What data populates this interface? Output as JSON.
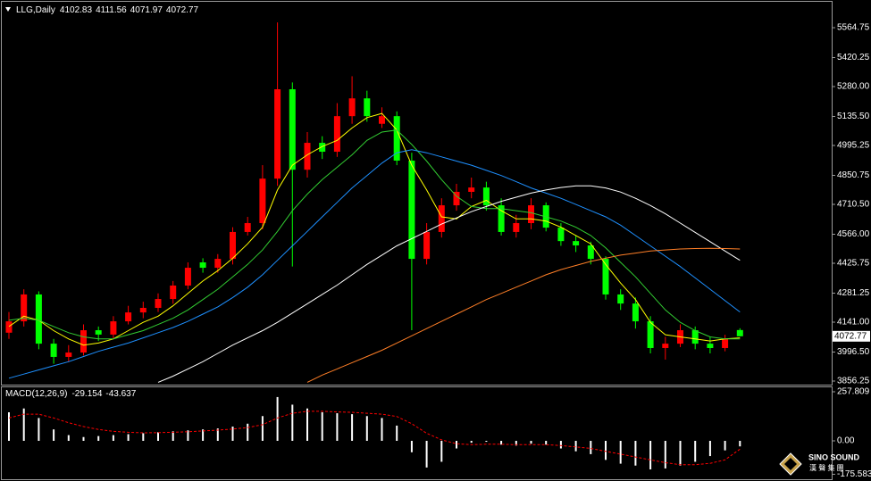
{
  "chart_data": [
    {
      "type": "candlestick",
      "title": "LLG,Daily",
      "open": [
        4090,
        4145,
        4275,
        4037,
        3973,
        3994,
        4102,
        4081,
        4145,
        4188,
        4210,
        4253,
        4318,
        4430,
        4404,
        4447,
        4577,
        4620,
        4835,
        5267,
        4878,
        5008,
        4965,
        5137,
        5223,
        5100,
        5137,
        4922,
        4447,
        4577,
        4706,
        4771,
        4792,
        4706,
        4577,
        4620,
        4706,
        4598,
        4533,
        4512,
        4447,
        4275,
        4231,
        4145,
        4016,
        4037,
        4102,
        4037,
        4016,
        4102.83
      ],
      "high": [
        4190,
        4300,
        4290,
        4060,
        4030,
        4130,
        4120,
        4170,
        4220,
        4240,
        4280,
        4340,
        4430,
        4450,
        4470,
        4600,
        4650,
        4900,
        5590,
        5300,
        5060,
        5040,
        5200,
        5330,
        5260,
        5180,
        5160,
        4960,
        4620,
        4740,
        4810,
        4840,
        4820,
        4740,
        4660,
        4740,
        4720,
        4620,
        4560,
        4530,
        4460,
        4300,
        4260,
        4170,
        4070,
        4130,
        4120,
        4070,
        4080,
        4111.56
      ],
      "low": [
        4060,
        4120,
        4010,
        3940,
        3950,
        3980,
        4050,
        4060,
        4130,
        4160,
        4190,
        4230,
        4300,
        4380,
        4380,
        4420,
        4560,
        4590,
        4800,
        4410,
        4840,
        4930,
        4940,
        5100,
        5110,
        5080,
        4900,
        4102,
        4420,
        4550,
        4680,
        4740,
        4680,
        4560,
        4550,
        4590,
        4580,
        4510,
        4480,
        4420,
        4250,
        4200,
        4110,
        3990,
        3960,
        4020,
        4010,
        3990,
        4000,
        4071.97
      ],
      "close": [
        4145,
        4275,
        4037,
        3973,
        3994,
        4102,
        4081,
        4145,
        4188,
        4210,
        4253,
        4318,
        4404,
        4404,
        4447,
        4577,
        4620,
        4835,
        5267,
        4878,
        5008,
        4965,
        5137,
        5223,
        5137,
        5137,
        4922,
        4447,
        4577,
        4706,
        4771,
        4792,
        4706,
        4577,
        4620,
        4706,
        4598,
        4533,
        4512,
        4447,
        4275,
        4231,
        4145,
        4016,
        4037,
        4102,
        4037,
        4016,
        4059,
        4072.77
      ],
      "up_color": "#ff0000",
      "down_color": "#00ff00",
      "lines": [
        {
          "color": "#ffff00",
          "values": [
            4120,
            4170,
            4150,
            4100,
            4060,
            4030,
            4040,
            4060,
            4100,
            4140,
            4170,
            4220,
            4280,
            4340,
            4390,
            4450,
            4520,
            4600,
            4780,
            4900,
            4950,
            4990,
            5020,
            5080,
            5130,
            5150,
            5070,
            4900,
            4780,
            4650,
            4640,
            4700,
            4730,
            4680,
            4640,
            4640,
            4630,
            4600,
            4560,
            4520,
            4420,
            4330,
            4250,
            4140,
            4080,
            4070,
            4060,
            4050,
            4060,
            4065
          ]
        },
        {
          "color": "#32cd32",
          "values": [
            4150,
            4160,
            4150,
            4120,
            4090,
            4070,
            4060,
            4060,
            4080,
            4100,
            4130,
            4160,
            4200,
            4250,
            4300,
            4360,
            4420,
            4490,
            4580,
            4680,
            4760,
            4830,
            4890,
            4950,
            5020,
            5060,
            5070,
            5000,
            4920,
            4830,
            4750,
            4700,
            4690,
            4690,
            4680,
            4670,
            4650,
            4630,
            4600,
            4560,
            4500,
            4430,
            4360,
            4280,
            4200,
            4140,
            4100,
            4070,
            4060,
            4060
          ]
        },
        {
          "color": "#1e90ff",
          "values": [
            3870,
            3890,
            3910,
            3930,
            3950,
            3975,
            4000,
            4020,
            4040,
            4065,
            4090,
            4115,
            4145,
            4180,
            4215,
            4260,
            4310,
            4370,
            4440,
            4510,
            4580,
            4650,
            4720,
            4790,
            4850,
            4910,
            4960,
            4975,
            4960,
            4940,
            4920,
            4900,
            4875,
            4850,
            4820,
            4790,
            4765,
            4740,
            4710,
            4680,
            4650,
            4610,
            4560,
            4510,
            4460,
            4410,
            4355,
            4300,
            4245,
            4190
          ]
        },
        {
          "color": "#ffffff",
          "values": [
            null,
            null,
            null,
            null,
            null,
            null,
            null,
            null,
            null,
            null,
            3850,
            3880,
            3915,
            3950,
            3990,
            4030,
            4065,
            4100,
            4140,
            4185,
            4230,
            4275,
            4320,
            4370,
            4420,
            4465,
            4510,
            4545,
            4580,
            4615,
            4645,
            4675,
            4700,
            4725,
            4745,
            4765,
            4780,
            4792,
            4800,
            4800,
            4790,
            4770,
            4740,
            4705,
            4665,
            4620,
            4575,
            4530,
            4485,
            4440
          ]
        },
        {
          "color": "#ff7f27",
          "values": [
            null,
            null,
            null,
            null,
            null,
            null,
            null,
            null,
            null,
            null,
            null,
            null,
            null,
            null,
            null,
            null,
            null,
            null,
            null,
            null,
            3850,
            3885,
            3915,
            3945,
            3975,
            4005,
            4040,
            4075,
            4110,
            4145,
            4180,
            4215,
            4250,
            4280,
            4310,
            4340,
            4370,
            4395,
            4415,
            4435,
            4450,
            4465,
            4475,
            4485,
            4490,
            4495,
            4497,
            4498,
            4497,
            4495
          ]
        }
      ],
      "ylim": [
        3843.3,
        5677.0
      ],
      "yticks": [
        {
          "value": 3856.25,
          "label": "3856.25"
        },
        {
          "value": 3996.5,
          "label": "3996.50"
        },
        {
          "value": 4141,
          "label": "4141.00"
        },
        {
          "value": 4281.25,
          "label": "4281.25"
        },
        {
          "value": 4425.75,
          "label": "4425.75"
        },
        {
          "value": 4566,
          "label": "4566.00"
        },
        {
          "value": 4710.5,
          "label": "4710.50"
        },
        {
          "value": 4850.75,
          "label": "4850.75"
        },
        {
          "value": 4995.25,
          "label": "4995.25"
        },
        {
          "value": 5135.5,
          "label": "5135.50"
        },
        {
          "value": 5280,
          "label": "5280.00"
        },
        {
          "value": 5420.25,
          "label": "5420.25"
        },
        {
          "value": 5564.75,
          "label": "5564.75"
        }
      ]
    },
    {
      "type": "macd",
      "title": "MACD(12,26,9)",
      "series": [
        {
          "color": "#ffffff",
          "values": [
            150,
            170,
            120,
            60,
            30,
            20,
            25,
            30,
            35,
            40,
            45,
            50,
            55,
            60,
            65,
            75,
            90,
            130,
            230,
            190,
            170,
            150,
            145,
            140,
            130,
            120,
            80,
            -60,
            -140,
            -110,
            -40,
            -10,
            -5,
            -20,
            -25,
            -15,
            -20,
            -40,
            -55,
            -70,
            -100,
            -120,
            -130,
            -150,
            -145,
            -130,
            -110,
            -80,
            -50,
            -29.154
          ]
        },
        {
          "color": "#ff0000",
          "values": [
            120,
            140,
            140,
            120,
            95,
            75,
            60,
            50,
            45,
            42,
            43,
            45,
            48,
            52,
            56,
            62,
            70,
            85,
            120,
            145,
            155,
            155,
            152,
            150,
            145,
            140,
            128,
            90,
            40,
            5,
            -15,
            -20,
            -18,
            -18,
            -20,
            -20,
            -20,
            -25,
            -32,
            -40,
            -55,
            -70,
            -85,
            -100,
            -115,
            -125,
            -125,
            -118,
            -100,
            -43.637
          ]
        }
      ],
      "ylim": [
        -201.6,
        285.9
      ],
      "yticks": [
        257.809,
        {
          "value": 0,
          "label": "0.00"
        },
        -175.583
      ]
    }
  ],
  "logo": {
    "name": "SINO SOUND",
    "chinese": "漢 聲 集 團"
  }
}
